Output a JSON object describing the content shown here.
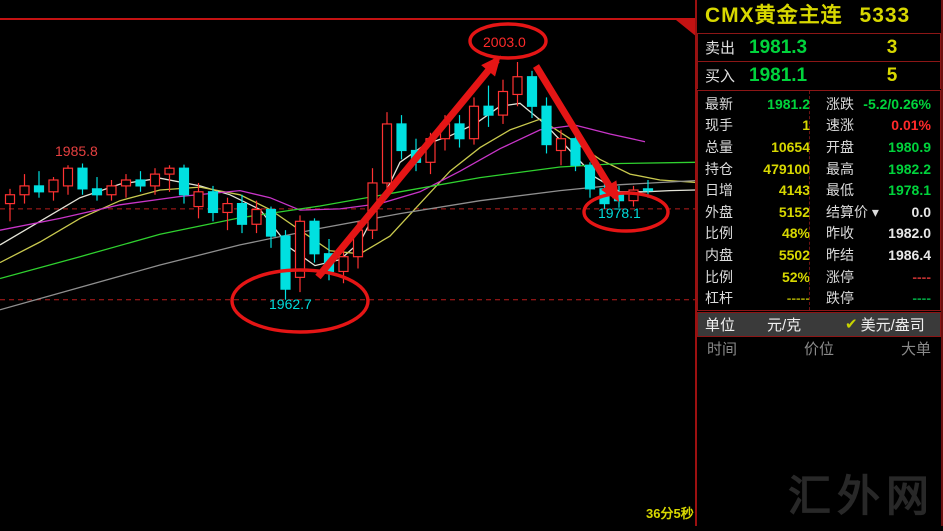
{
  "header": {
    "title": "CMX黄金主连",
    "code": "5333"
  },
  "quote": {
    "sell_label": "卖出",
    "sell_price": "1981.3",
    "sell_qty": "3",
    "buy_label": "买入",
    "buy_price": "1981.1",
    "buy_qty": "5"
  },
  "colors": {
    "green": "#00d43c",
    "yellow": "#d8d800",
    "red": "#ff2a2a",
    "white": "#e8e8e8",
    "dim_yellow": "#9a9a00",
    "dim_red": "#c03030",
    "dim_green": "#00a040",
    "cyan": "#00dcdc",
    "accent_red": "#e51515",
    "label": "#dcdcdc"
  },
  "panel_rows": [
    {
      "cells": [
        {
          "label": "最新",
          "value": "1981.2",
          "color": "green"
        },
        {
          "label": "涨跌",
          "value": "-5.2/0.26%",
          "color": "green"
        }
      ]
    },
    {
      "cells": [
        {
          "label": "现手",
          "value": "1",
          "color": "yellow"
        },
        {
          "label": "速涨",
          "value": "0.01%",
          "color": "red"
        }
      ]
    },
    {
      "cells": [
        {
          "label": "总量",
          "value": "10654",
          "color": "yellow"
        },
        {
          "label": "开盘",
          "value": "1980.9",
          "color": "green"
        }
      ]
    },
    {
      "cells": [
        {
          "label": "持仓",
          "value": "479100",
          "color": "yellow"
        },
        {
          "label": "最高",
          "value": "1982.2",
          "color": "green"
        }
      ]
    },
    {
      "cells": [
        {
          "label": "日增",
          "value": "4143",
          "color": "yellow"
        },
        {
          "label": "最低",
          "value": "1978.1",
          "color": "green"
        }
      ]
    },
    {
      "cells": [
        {
          "label": "外盘",
          "value": "5152",
          "color": "yellow"
        },
        {
          "label": "结算价 ▾",
          "value": "0.0",
          "color": "white"
        }
      ]
    },
    {
      "cells": [
        {
          "label": "比例",
          "value": "48%",
          "color": "yellow"
        },
        {
          "label": "昨收",
          "value": "1982.0",
          "color": "white"
        }
      ]
    },
    {
      "cells": [
        {
          "label": "内盘",
          "value": "5502",
          "color": "yellow"
        },
        {
          "label": "昨结",
          "value": "1986.4",
          "color": "white"
        }
      ]
    },
    {
      "cells": [
        {
          "label": "比例",
          "value": "52%",
          "color": "yellow"
        },
        {
          "label": "涨停",
          "value": "----",
          "color": "dim_red"
        }
      ]
    },
    {
      "cells": [
        {
          "label": "杠杆",
          "value": "-----",
          "color": "dim_yellow"
        },
        {
          "label": "跌停",
          "value": "----",
          "color": "dim_green"
        }
      ]
    }
  ],
  "unit_row": {
    "label": "单位",
    "option1": "元/克",
    "check": "✔",
    "option2": "美元/盎司"
  },
  "history_header": [
    "时间",
    "价位",
    "大单"
  ],
  "timer": "36分5秒",
  "watermark": "汇外网",
  "chart_data": {
    "type": "candlestick",
    "title": "CMX黄金主连 intraday candlestick chart",
    "ylim": [
      1957,
      2007
    ],
    "grid": false,
    "up_color": "#ff3232",
    "down_color": "#00e0e0",
    "candles": [
      {
        "o": 1979.0,
        "h": 1981.5,
        "l": 1976.0,
        "c": 1980.5
      },
      {
        "o": 1980.5,
        "h": 1984.0,
        "l": 1979.0,
        "c": 1982.0
      },
      {
        "o": 1982.0,
        "h": 1984.5,
        "l": 1980.0,
        "c": 1981.0
      },
      {
        "o": 1981.0,
        "h": 1983.5,
        "l": 1979.5,
        "c": 1983.0
      },
      {
        "o": 1982.0,
        "h": 1985.5,
        "l": 1980.5,
        "c": 1985.0
      },
      {
        "o": 1985.0,
        "h": 1985.8,
        "l": 1980.5,
        "c": 1981.5
      },
      {
        "o": 1981.5,
        "h": 1983.5,
        "l": 1979.5,
        "c": 1980.5
      },
      {
        "o": 1980.5,
        "h": 1983.0,
        "l": 1979.5,
        "c": 1982.0
      },
      {
        "o": 1982.0,
        "h": 1984.0,
        "l": 1980.0,
        "c": 1983.0
      },
      {
        "o": 1983.0,
        "h": 1984.5,
        "l": 1981.0,
        "c": 1982.0
      },
      {
        "o": 1982.0,
        "h": 1985.0,
        "l": 1980.5,
        "c": 1984.0
      },
      {
        "o": 1984.0,
        "h": 1985.5,
        "l": 1981.0,
        "c": 1985.0
      },
      {
        "o": 1985.0,
        "h": 1985.6,
        "l": 1979.0,
        "c": 1980.5
      },
      {
        "o": 1978.5,
        "h": 1982.5,
        "l": 1976.5,
        "c": 1981.0
      },
      {
        "o": 1981.0,
        "h": 1982.0,
        "l": 1976.0,
        "c": 1977.5
      },
      {
        "o": 1977.5,
        "h": 1980.0,
        "l": 1974.5,
        "c": 1979.0
      },
      {
        "o": 1979.0,
        "h": 1980.5,
        "l": 1974.0,
        "c": 1975.5
      },
      {
        "o": 1975.5,
        "h": 1979.5,
        "l": 1974.0,
        "c": 1978.0
      },
      {
        "o": 1978.0,
        "h": 1978.5,
        "l": 1971.5,
        "c": 1973.5
      },
      {
        "o": 1973.5,
        "h": 1974.5,
        "l": 1962.7,
        "c": 1964.5
      },
      {
        "o": 1966.5,
        "h": 1977.0,
        "l": 1964.0,
        "c": 1976.0
      },
      {
        "o": 1976.0,
        "h": 1976.5,
        "l": 1969.0,
        "c": 1970.5
      },
      {
        "o": 1970.5,
        "h": 1973.0,
        "l": 1966.0,
        "c": 1967.5
      },
      {
        "o": 1967.5,
        "h": 1971.0,
        "l": 1965.5,
        "c": 1970.0
      },
      {
        "o": 1970.0,
        "h": 1976.0,
        "l": 1968.0,
        "c": 1974.5
      },
      {
        "o": 1974.5,
        "h": 1985.0,
        "l": 1973.0,
        "c": 1982.5
      },
      {
        "o": 1982.5,
        "h": 1994.5,
        "l": 1981.0,
        "c": 1992.5
      },
      {
        "o": 1992.5,
        "h": 1994.0,
        "l": 1986.5,
        "c": 1988.0
      },
      {
        "o": 1988.0,
        "h": 1990.0,
        "l": 1984.5,
        "c": 1986.0
      },
      {
        "o": 1986.0,
        "h": 1991.0,
        "l": 1984.0,
        "c": 1990.0
      },
      {
        "o": 1990.0,
        "h": 1994.0,
        "l": 1988.0,
        "c": 1992.5
      },
      {
        "o": 1992.5,
        "h": 1994.0,
        "l": 1988.5,
        "c": 1990.0
      },
      {
        "o": 1990.0,
        "h": 1997.0,
        "l": 1989.0,
        "c": 1995.5
      },
      {
        "o": 1995.5,
        "h": 1999.0,
        "l": 1992.0,
        "c": 1994.0
      },
      {
        "o": 1994.0,
        "h": 2000.0,
        "l": 1992.5,
        "c": 1998.0
      },
      {
        "o": 1997.5,
        "h": 2003.0,
        "l": 1995.5,
        "c": 2000.5
      },
      {
        "o": 2000.5,
        "h": 2001.5,
        "l": 1993.5,
        "c": 1995.5
      },
      {
        "o": 1995.5,
        "h": 1997.0,
        "l": 1987.5,
        "c": 1989.0
      },
      {
        "o": 1988.0,
        "h": 1991.5,
        "l": 1985.5,
        "c": 1990.0
      },
      {
        "o": 1990.0,
        "h": 1990.5,
        "l": 1984.5,
        "c": 1985.5
      },
      {
        "o": 1985.5,
        "h": 1986.0,
        "l": 1980.0,
        "c": 1981.5
      },
      {
        "o": 1981.5,
        "h": 1982.5,
        "l": 1978.1,
        "c": 1979.0
      },
      {
        "o": 1980.5,
        "h": 1982.0,
        "l": 1978.3,
        "c": 1979.5
      },
      {
        "o": 1979.5,
        "h": 1982.0,
        "l": 1978.5,
        "c": 1981.3
      },
      {
        "o": 1981.5,
        "h": 1983.0,
        "l": 1980.0,
        "c": 1981.2
      }
    ],
    "series": [
      {
        "name": "ma-fast-white",
        "color": "#e4e4d8",
        "points": [
          [
            0,
            1972
          ],
          [
            40,
            1976
          ],
          [
            80,
            1980
          ],
          [
            120,
            1982.3
          ],
          [
            160,
            1983.3
          ],
          [
            200,
            1982
          ],
          [
            230,
            1980.5
          ],
          [
            260,
            1978
          ],
          [
            290,
            1971.5
          ],
          [
            315,
            1968.5
          ],
          [
            340,
            1969.5
          ],
          [
            360,
            1972.5
          ],
          [
            380,
            1979
          ],
          [
            400,
            1986
          ],
          [
            425,
            1989
          ],
          [
            450,
            1990.5
          ],
          [
            475,
            1992.5
          ],
          [
            500,
            1995.5
          ],
          [
            520,
            1996
          ],
          [
            545,
            1992.5
          ],
          [
            570,
            1988
          ],
          [
            595,
            1983.5
          ],
          [
            620,
            1981
          ],
          [
            645,
            1981
          ],
          [
            670,
            1981.2
          ],
          [
            695,
            1981.3
          ]
        ]
      },
      {
        "name": "ma-mid-yellow",
        "color": "#c9c94e",
        "points": [
          [
            0,
            1969
          ],
          [
            40,
            1972.5
          ],
          [
            80,
            1976.5
          ],
          [
            120,
            1979.5
          ],
          [
            160,
            1981.3
          ],
          [
            200,
            1981.8
          ],
          [
            240,
            1980.5
          ],
          [
            270,
            1978
          ],
          [
            300,
            1974.5
          ],
          [
            330,
            1971
          ],
          [
            360,
            1970.5
          ],
          [
            390,
            1973.5
          ],
          [
            420,
            1979
          ],
          [
            450,
            1984.5
          ],
          [
            480,
            1988.5
          ],
          [
            510,
            1991.5
          ],
          [
            540,
            1993.3
          ],
          [
            570,
            1990
          ],
          [
            600,
            1986.5
          ],
          [
            630,
            1984
          ],
          [
            660,
            1983
          ],
          [
            695,
            1982.6
          ]
        ]
      },
      {
        "name": "ma-slow-magenta",
        "color": "#c835c8",
        "points": [
          [
            0,
            1974.5
          ],
          [
            60,
            1976.5
          ],
          [
            120,
            1978.8
          ],
          [
            180,
            1980.2
          ],
          [
            240,
            1981.2
          ],
          [
            270,
            1980
          ],
          [
            300,
            1977.9
          ],
          [
            340,
            1978.1
          ],
          [
            380,
            1979
          ],
          [
            420,
            1981
          ],
          [
            460,
            1984.5
          ],
          [
            500,
            1988.3
          ],
          [
            540,
            1991.5
          ],
          [
            575,
            1992.3
          ],
          [
            610,
            1990.8
          ],
          [
            645,
            1989.5
          ]
        ]
      },
      {
        "name": "ma-long-green",
        "color": "#2fd12f",
        "points": [
          [
            0,
            1966.3
          ],
          [
            80,
            1970
          ],
          [
            160,
            1973.8
          ],
          [
            240,
            1976.6
          ],
          [
            320,
            1978.6
          ],
          [
            400,
            1981
          ],
          [
            480,
            1983.4
          ],
          [
            560,
            1985.2
          ],
          [
            620,
            1985.8
          ],
          [
            695,
            1986
          ]
        ]
      },
      {
        "name": "ma-longest-gray",
        "color": "#8f8f8f",
        "points": [
          [
            0,
            1961
          ],
          [
            80,
            1964.8
          ],
          [
            160,
            1968.6
          ],
          [
            240,
            1972
          ],
          [
            320,
            1974.8
          ],
          [
            400,
            1977.3
          ],
          [
            480,
            1979.5
          ],
          [
            560,
            1981.2
          ],
          [
            620,
            1982.2
          ],
          [
            695,
            1982.9
          ]
        ]
      }
    ],
    "hlines": [
      {
        "name": "pullback-low-line",
        "price": 1978.1,
        "style": "dashed",
        "color": "#b81c1c"
      },
      {
        "name": "bottom-line",
        "price": 1962.7,
        "style": "dashed",
        "color": "#b81c1c"
      }
    ],
    "annotations": [
      {
        "id": "local-high",
        "text": "1985.8",
        "color": "#e64040"
      },
      {
        "id": "peak",
        "text": "2003.0",
        "color": "#ff2a2a"
      },
      {
        "id": "bottom",
        "text": "1962.7",
        "color": "#00dcdc"
      },
      {
        "id": "pullback-low",
        "text": "1978.1",
        "color": "#00dcdc"
      }
    ]
  }
}
